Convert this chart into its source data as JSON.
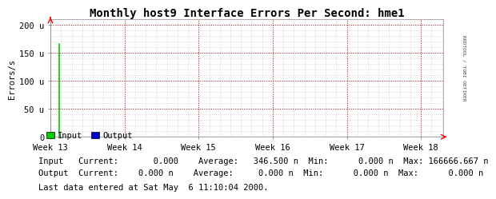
{
  "title": "Monthly host9 Interface Errors Per Second: hme1",
  "ylabel": "Errors/s",
  "ytick_labels": [
    "0",
    "50 u",
    "100 u",
    "150 u",
    "200 u"
  ],
  "ytick_values": [
    0,
    50,
    100,
    150,
    200
  ],
  "ylim": [
    0,
    210
  ],
  "xtick_labels": [
    "Week 13",
    "Week 14",
    "Week 15",
    "Week 16",
    "Week 17",
    "Week 18"
  ],
  "xtick_positions": [
    0,
    1,
    2,
    3,
    4,
    5
  ],
  "xlim": [
    0,
    5.3
  ],
  "fig_bg_color": "#ffffff",
  "plot_bg_color": "#ffffff",
  "grid_color_major": "#880000",
  "grid_color_minor": "#aaaaaa",
  "input_spike_x": 0.12,
  "input_spike_y": 166.667,
  "input_color": "#00cc00",
  "output_color": "#0000cc",
  "legend_input": "Input",
  "legend_output": "Output",
  "text_line1": "Input   Current:       0.000    Average:   346.500 n  Min:      0.000 n  Max: 166666.667 n",
  "text_line2": "Output  Current:    0.000 n    Average:     0.000 n  Min:      0.000 n  Max:      0.000 n",
  "last_data_text": "Last data entered at Sat May  6 11:10:04 2000.",
  "right_label": "RRDTOOL / TOBI OETIKER",
  "font_family": "monospace",
  "title_fontsize": 10,
  "axis_fontsize": 7.5,
  "label_fontsize": 7.5,
  "minor_y": [
    10,
    20,
    30,
    40,
    60,
    70,
    80,
    90,
    110,
    120,
    130,
    140,
    160,
    170,
    180,
    190
  ],
  "minor_x_offsets": [
    0.143,
    0.286,
    0.429,
    0.571,
    0.714,
    0.857
  ]
}
